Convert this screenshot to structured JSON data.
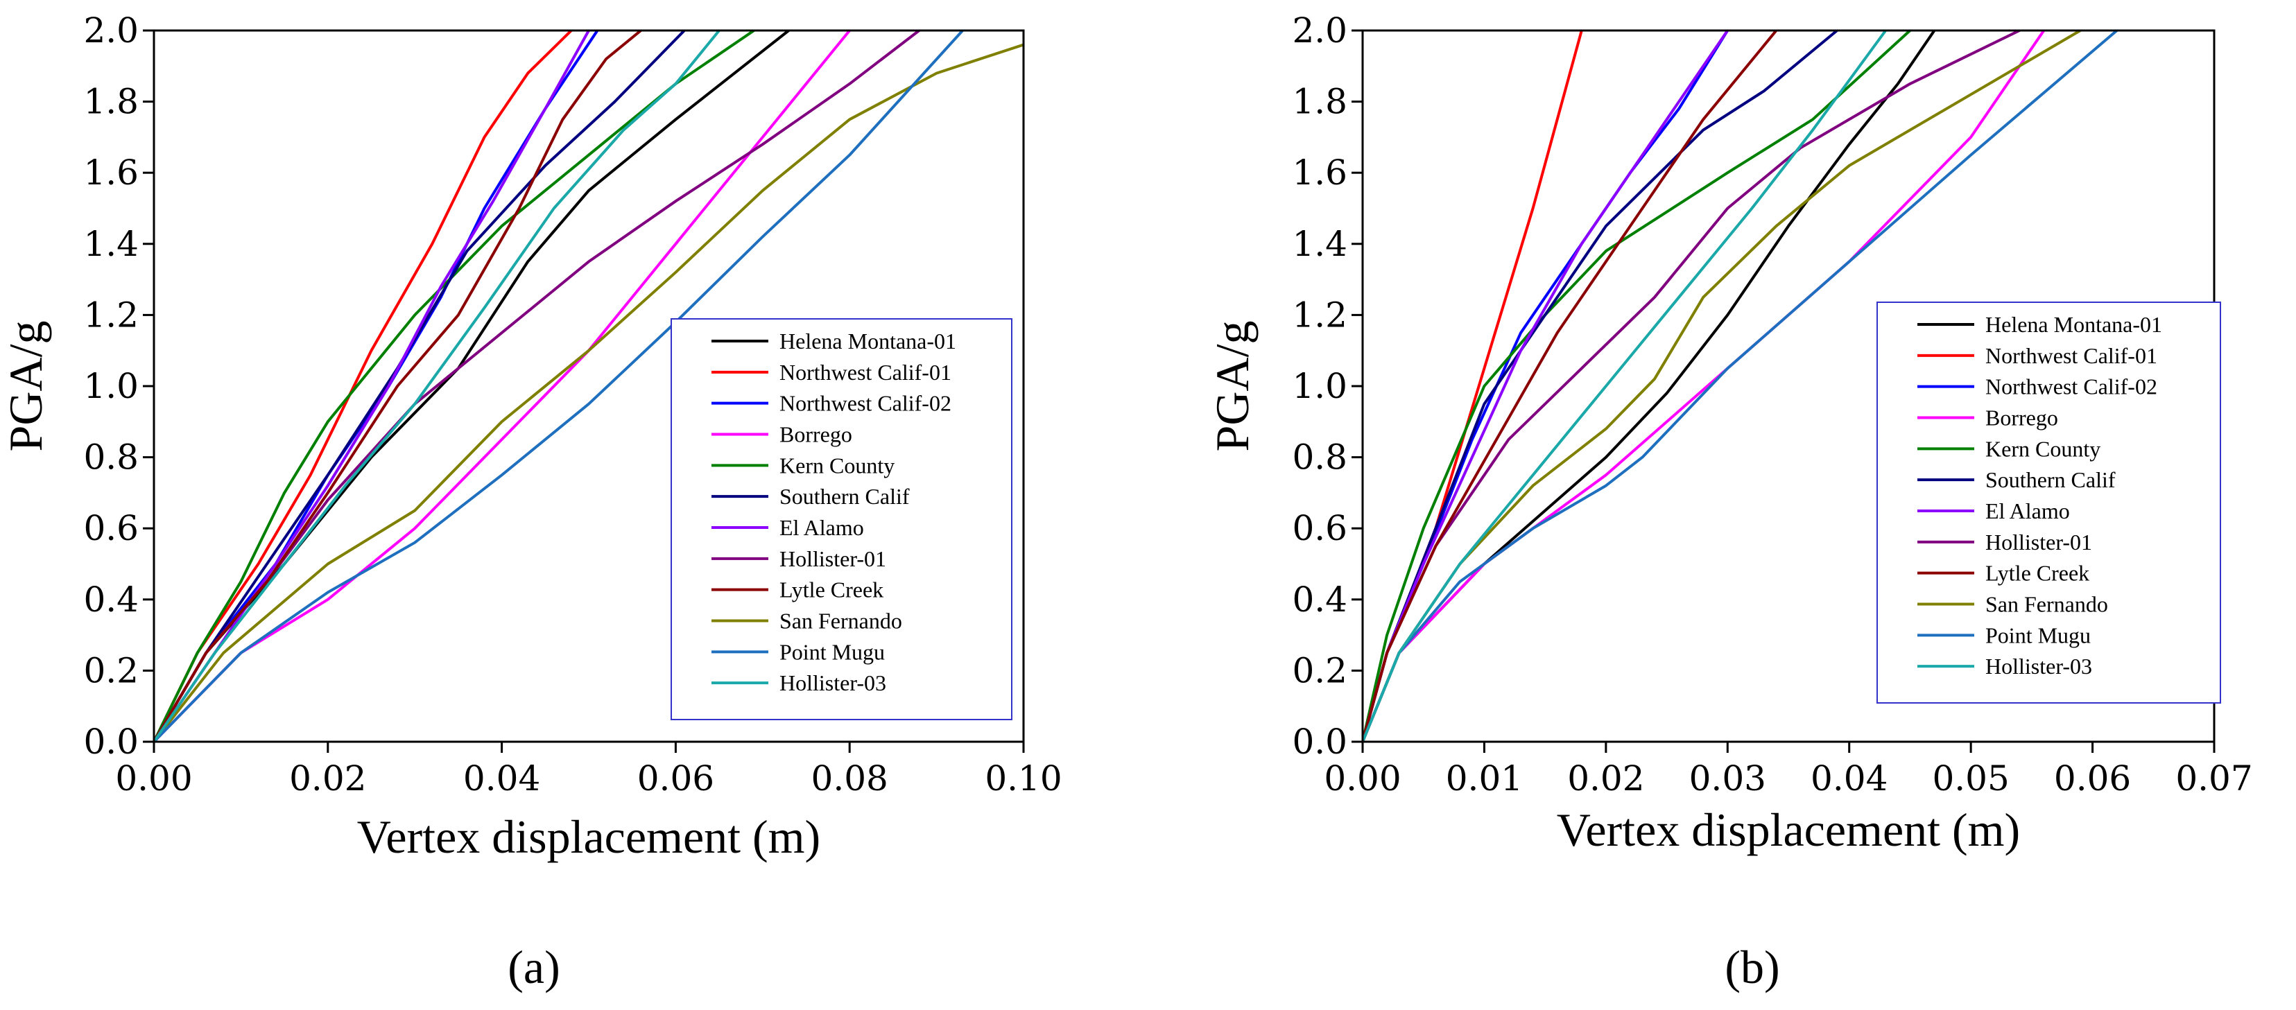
{
  "chart_data": [
    {
      "type": "line",
      "panel_label": "(a)",
      "xlabel": "Vertex displacement (m)",
      "ylabel": "PGA/g",
      "xlim": [
        0,
        0.1
      ],
      "ylim": [
        0,
        2.0
      ],
      "xticks": [
        0,
        0.02,
        0.04,
        0.06,
        0.08,
        0.1
      ],
      "xtick_labels": [
        "0.00",
        "0.02",
        "0.04",
        "0.06",
        "0.08",
        "0.10"
      ],
      "yticks": [
        0,
        0.2,
        0.4,
        0.6,
        0.8,
        1.0,
        1.2,
        1.4,
        1.6,
        1.8,
        2.0
      ],
      "ytick_labels": [
        "0.0",
        "0.2",
        "0.4",
        "0.6",
        "0.8",
        "1.0",
        "1.2",
        "1.4",
        "1.6",
        "1.8",
        "2.0"
      ],
      "legend_position": "center-right",
      "series": [
        {
          "name": "Helena Montana-01",
          "color": "#000000",
          "points": [
            [
              0,
              0
            ],
            [
              0.006,
              0.25
            ],
            [
              0.015,
              0.5
            ],
            [
              0.025,
              0.8
            ],
            [
              0.035,
              1.05
            ],
            [
              0.043,
              1.35
            ],
            [
              0.05,
              1.55
            ],
            [
              0.06,
              1.75
            ],
            [
              0.073,
              2.0
            ]
          ]
        },
        {
          "name": "Northwest Calif-01",
          "color": "#ff0000",
          "points": [
            [
              0,
              0
            ],
            [
              0.005,
              0.25
            ],
            [
              0.012,
              0.5
            ],
            [
              0.018,
              0.75
            ],
            [
              0.025,
              1.1
            ],
            [
              0.032,
              1.4
            ],
            [
              0.038,
              1.7
            ],
            [
              0.043,
              1.88
            ],
            [
              0.048,
              2.0
            ]
          ]
        },
        {
          "name": "Northwest Calif-02",
          "color": "#0000ff",
          "points": [
            [
              0,
              0
            ],
            [
              0.006,
              0.25
            ],
            [
              0.014,
              0.5
            ],
            [
              0.02,
              0.75
            ],
            [
              0.027,
              1.0
            ],
            [
              0.033,
              1.25
            ],
            [
              0.038,
              1.5
            ],
            [
              0.045,
              1.78
            ],
            [
              0.051,
              2.0
            ]
          ]
        },
        {
          "name": "Borrego",
          "color": "#ff00ff",
          "points": [
            [
              0,
              0
            ],
            [
              0.01,
              0.25
            ],
            [
              0.02,
              0.4
            ],
            [
              0.03,
              0.6
            ],
            [
              0.04,
              0.85
            ],
            [
              0.05,
              1.1
            ],
            [
              0.06,
              1.4
            ],
            [
              0.07,
              1.7
            ],
            [
              0.08,
              2.0
            ]
          ]
        },
        {
          "name": "Kern County",
          "color": "#008000",
          "points": [
            [
              0,
              0
            ],
            [
              0.005,
              0.25
            ],
            [
              0.01,
              0.45
            ],
            [
              0.015,
              0.7
            ],
            [
              0.02,
              0.9
            ],
            [
              0.03,
              1.2
            ],
            [
              0.04,
              1.45
            ],
            [
              0.05,
              1.65
            ],
            [
              0.06,
              1.85
            ],
            [
              0.069,
              2.0
            ]
          ]
        },
        {
          "name": "Southern Calif",
          "color": "#000080",
          "points": [
            [
              0,
              0
            ],
            [
              0.006,
              0.25
            ],
            [
              0.013,
              0.5
            ],
            [
              0.02,
              0.75
            ],
            [
              0.028,
              1.05
            ],
            [
              0.036,
              1.38
            ],
            [
              0.045,
              1.62
            ],
            [
              0.053,
              1.8
            ],
            [
              0.061,
              2.0
            ]
          ]
        },
        {
          "name": "El Alamo",
          "color": "#8b00ff",
          "points": [
            [
              0,
              0
            ],
            [
              0.007,
              0.25
            ],
            [
              0.014,
              0.5
            ],
            [
              0.02,
              0.72
            ],
            [
              0.027,
              1.0
            ],
            [
              0.033,
              1.28
            ],
            [
              0.039,
              1.52
            ],
            [
              0.045,
              1.78
            ],
            [
              0.05,
              2.0
            ]
          ]
        },
        {
          "name": "Hollister-01",
          "color": "#800080",
          "points": [
            [
              0,
              0
            ],
            [
              0.006,
              0.25
            ],
            [
              0.013,
              0.45
            ],
            [
              0.02,
              0.68
            ],
            [
              0.03,
              0.95
            ],
            [
              0.04,
              1.15
            ],
            [
              0.05,
              1.35
            ],
            [
              0.06,
              1.52
            ],
            [
              0.07,
              1.68
            ],
            [
              0.08,
              1.85
            ],
            [
              0.088,
              2.0
            ]
          ]
        },
        {
          "name": "Lytle Creek",
          "color": "#8b0000",
          "points": [
            [
              0,
              0
            ],
            [
              0.006,
              0.25
            ],
            [
              0.013,
              0.45
            ],
            [
              0.02,
              0.7
            ],
            [
              0.028,
              1.0
            ],
            [
              0.035,
              1.2
            ],
            [
              0.042,
              1.5
            ],
            [
              0.047,
              1.75
            ],
            [
              0.052,
              1.92
            ],
            [
              0.056,
              2.0
            ]
          ]
        },
        {
          "name": "San Fernando",
          "color": "#808000",
          "points": [
            [
              0,
              0
            ],
            [
              0.008,
              0.25
            ],
            [
              0.02,
              0.5
            ],
            [
              0.03,
              0.65
            ],
            [
              0.04,
              0.9
            ],
            [
              0.05,
              1.1
            ],
            [
              0.06,
              1.32
            ],
            [
              0.07,
              1.55
            ],
            [
              0.08,
              1.75
            ],
            [
              0.09,
              1.88
            ],
            [
              0.1,
              1.96
            ]
          ]
        },
        {
          "name": "Point Mugu",
          "color": "#1f6fbf",
          "points": [
            [
              0,
              0
            ],
            [
              0.01,
              0.25
            ],
            [
              0.02,
              0.42
            ],
            [
              0.03,
              0.56
            ],
            [
              0.04,
              0.75
            ],
            [
              0.05,
              0.95
            ],
            [
              0.06,
              1.18
            ],
            [
              0.07,
              1.42
            ],
            [
              0.08,
              1.65
            ],
            [
              0.093,
              2.0
            ]
          ]
        },
        {
          "name": "Hollister-03",
          "color": "#1aa8a8",
          "points": [
            [
              0,
              0
            ],
            [
              0.007,
              0.25
            ],
            [
              0.015,
              0.5
            ],
            [
              0.022,
              0.72
            ],
            [
              0.03,
              0.95
            ],
            [
              0.038,
              1.22
            ],
            [
              0.046,
              1.5
            ],
            [
              0.054,
              1.72
            ],
            [
              0.06,
              1.85
            ],
            [
              0.065,
              2.0
            ]
          ]
        }
      ]
    },
    {
      "type": "line",
      "panel_label": "(b)",
      "xlabel": "Vertex displacement (m)",
      "ylabel": "PGA/g",
      "xlim": [
        0,
        0.07
      ],
      "ylim": [
        0,
        2.0
      ],
      "xticks": [
        0,
        0.01,
        0.02,
        0.03,
        0.04,
        0.05,
        0.06,
        0.07
      ],
      "xtick_labels": [
        "0.00",
        "0.01",
        "0.02",
        "0.03",
        "0.04",
        "0.05",
        "0.06",
        "0.07"
      ],
      "yticks": [
        0,
        0.2,
        0.4,
        0.6,
        0.8,
        1.0,
        1.2,
        1.4,
        1.6,
        1.8,
        2.0
      ],
      "ytick_labels": [
        "0.0",
        "0.2",
        "0.4",
        "0.6",
        "0.8",
        "1.0",
        "1.2",
        "1.4",
        "1.6",
        "1.8",
        "2.0"
      ],
      "legend_position": "center-right",
      "series": [
        {
          "name": "Helena Montana-01",
          "color": "#000000",
          "points": [
            [
              0,
              0
            ],
            [
              0.003,
              0.25
            ],
            [
              0.01,
              0.5
            ],
            [
              0.02,
              0.8
            ],
            [
              0.025,
              0.98
            ],
            [
              0.03,
              1.2
            ],
            [
              0.035,
              1.45
            ],
            [
              0.04,
              1.68
            ],
            [
              0.044,
              1.85
            ],
            [
              0.047,
              2.0
            ]
          ]
        },
        {
          "name": "Northwest Calif-01",
          "color": "#ff0000",
          "points": [
            [
              0,
              0
            ],
            [
              0.002,
              0.25
            ],
            [
              0.006,
              0.6
            ],
            [
              0.01,
              1.05
            ],
            [
              0.014,
              1.5
            ],
            [
              0.018,
              2.0
            ]
          ]
        },
        {
          "name": "Northwest Calif-02",
          "color": "#0000ff",
          "points": [
            [
              0,
              0
            ],
            [
              0.002,
              0.25
            ],
            [
              0.005,
              0.5
            ],
            [
              0.009,
              0.85
            ],
            [
              0.013,
              1.15
            ],
            [
              0.018,
              1.4
            ],
            [
              0.022,
              1.6
            ],
            [
              0.026,
              1.78
            ],
            [
              0.03,
              2.0
            ]
          ]
        },
        {
          "name": "Borrego",
          "color": "#ff00ff",
          "points": [
            [
              0,
              0
            ],
            [
              0.003,
              0.25
            ],
            [
              0.01,
              0.5
            ],
            [
              0.02,
              0.75
            ],
            [
              0.03,
              1.05
            ],
            [
              0.04,
              1.35
            ],
            [
              0.05,
              1.7
            ],
            [
              0.056,
              2.0
            ]
          ]
        },
        {
          "name": "Kern County",
          "color": "#008000",
          "points": [
            [
              0,
              0
            ],
            [
              0.002,
              0.3
            ],
            [
              0.005,
              0.6
            ],
            [
              0.01,
              1.0
            ],
            [
              0.015,
              1.2
            ],
            [
              0.02,
              1.38
            ],
            [
              0.03,
              1.6
            ],
            [
              0.037,
              1.75
            ],
            [
              0.045,
              2.0
            ]
          ]
        },
        {
          "name": "Southern Calif",
          "color": "#000080",
          "points": [
            [
              0,
              0
            ],
            [
              0.002,
              0.25
            ],
            [
              0.006,
              0.6
            ],
            [
              0.01,
              0.95
            ],
            [
              0.015,
              1.2
            ],
            [
              0.02,
              1.45
            ],
            [
              0.028,
              1.72
            ],
            [
              0.033,
              1.83
            ],
            [
              0.039,
              2.0
            ]
          ]
        },
        {
          "name": "El Alamo",
          "color": "#8b00ff",
          "points": [
            [
              0,
              0
            ],
            [
              0.002,
              0.25
            ],
            [
              0.005,
              0.5
            ],
            [
              0.009,
              0.8
            ],
            [
              0.013,
              1.1
            ],
            [
              0.018,
              1.4
            ],
            [
              0.023,
              1.65
            ],
            [
              0.03,
              2.0
            ]
          ]
        },
        {
          "name": "Hollister-01",
          "color": "#800080",
          "points": [
            [
              0,
              0
            ],
            [
              0.002,
              0.25
            ],
            [
              0.006,
              0.55
            ],
            [
              0.012,
              0.85
            ],
            [
              0.018,
              1.05
            ],
            [
              0.024,
              1.25
            ],
            [
              0.03,
              1.5
            ],
            [
              0.036,
              1.67
            ],
            [
              0.045,
              1.85
            ],
            [
              0.054,
              2.0
            ]
          ]
        },
        {
          "name": "Lytle Creek",
          "color": "#8b0000",
          "points": [
            [
              0,
              0
            ],
            [
              0.002,
              0.25
            ],
            [
              0.006,
              0.55
            ],
            [
              0.011,
              0.85
            ],
            [
              0.016,
              1.15
            ],
            [
              0.022,
              1.45
            ],
            [
              0.028,
              1.75
            ],
            [
              0.034,
              2.0
            ]
          ]
        },
        {
          "name": "San Fernando",
          "color": "#808000",
          "points": [
            [
              0,
              0
            ],
            [
              0.003,
              0.25
            ],
            [
              0.008,
              0.5
            ],
            [
              0.014,
              0.72
            ],
            [
              0.02,
              0.88
            ],
            [
              0.024,
              1.02
            ],
            [
              0.028,
              1.25
            ],
            [
              0.034,
              1.45
            ],
            [
              0.04,
              1.62
            ],
            [
              0.05,
              1.82
            ],
            [
              0.059,
              2.0
            ]
          ]
        },
        {
          "name": "Point Mugu",
          "color": "#1f6fbf",
          "points": [
            [
              0,
              0
            ],
            [
              0.003,
              0.25
            ],
            [
              0.008,
              0.45
            ],
            [
              0.014,
              0.6
            ],
            [
              0.02,
              0.72
            ],
            [
              0.023,
              0.8
            ],
            [
              0.03,
              1.05
            ],
            [
              0.04,
              1.35
            ],
            [
              0.05,
              1.65
            ],
            [
              0.062,
              2.0
            ]
          ]
        },
        {
          "name": "Hollister-03",
          "color": "#1aa8a8",
          "points": [
            [
              0,
              0
            ],
            [
              0.003,
              0.25
            ],
            [
              0.008,
              0.5
            ],
            [
              0.014,
              0.75
            ],
            [
              0.02,
              1.0
            ],
            [
              0.026,
              1.25
            ],
            [
              0.032,
              1.5
            ],
            [
              0.037,
              1.72
            ],
            [
              0.043,
              2.0
            ]
          ]
        }
      ]
    }
  ]
}
